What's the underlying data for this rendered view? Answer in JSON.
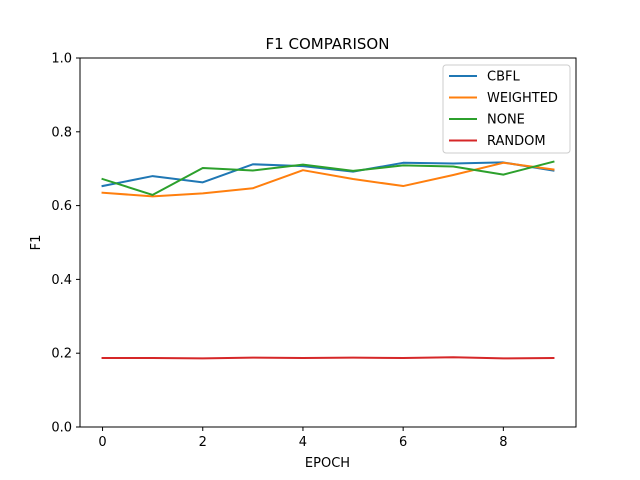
{
  "chart_data": {
    "type": "line",
    "title": "F1 COMPARISON",
    "xlabel": "EPOCH",
    "ylabel": "F1",
    "xlim": [
      -0.45,
      9.45
    ],
    "ylim": [
      0.0,
      1.0
    ],
    "xticks": [
      0,
      2,
      4,
      6,
      8
    ],
    "yticks": [
      0.0,
      0.2,
      0.4,
      0.6,
      0.8,
      1.0
    ],
    "ytick_labels": [
      "0.0",
      "0.2",
      "0.4",
      "0.6",
      "0.8",
      "1.0"
    ],
    "grid": false,
    "legend_position": "top-right",
    "x": [
      0,
      1,
      2,
      3,
      4,
      5,
      6,
      7,
      8,
      9
    ],
    "series": [
      {
        "name": "CBFL",
        "color": "#1f77b4",
        "values": [
          0.653,
          0.68,
          0.663,
          0.712,
          0.707,
          0.692,
          0.716,
          0.714,
          0.717,
          0.695
        ]
      },
      {
        "name": "WEIGHTED",
        "color": "#ff7f0e",
        "values": [
          0.635,
          0.625,
          0.633,
          0.647,
          0.696,
          0.672,
          0.653,
          0.683,
          0.716,
          0.698
        ]
      },
      {
        "name": "NONE",
        "color": "#2ca02c",
        "values": [
          0.672,
          0.629,
          0.702,
          0.695,
          0.711,
          0.694,
          0.709,
          0.706,
          0.684,
          0.719
        ]
      },
      {
        "name": "RANDOM",
        "color": "#d62728",
        "values": [
          0.187,
          0.187,
          0.186,
          0.188,
          0.187,
          0.188,
          0.187,
          0.189,
          0.186,
          0.187
        ]
      }
    ]
  }
}
